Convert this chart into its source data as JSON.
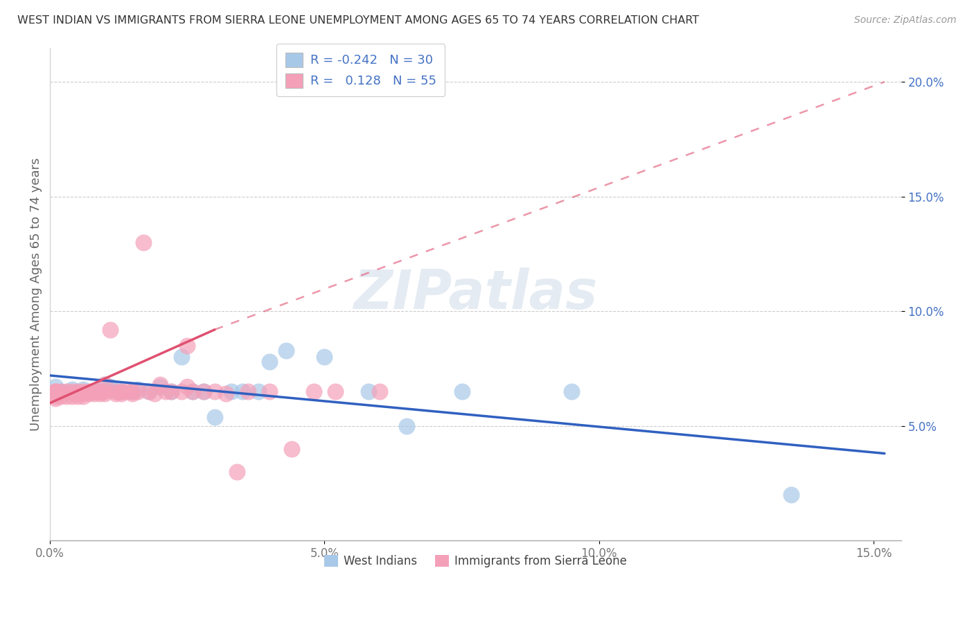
{
  "title": "WEST INDIAN VS IMMIGRANTS FROM SIERRA LEONE UNEMPLOYMENT AMONG AGES 65 TO 74 YEARS CORRELATION CHART",
  "source": "Source: ZipAtlas.com",
  "ylabel": "Unemployment Among Ages 65 to 74 years",
  "xlim": [
    0.0,
    0.155
  ],
  "ylim": [
    0.0,
    0.215
  ],
  "xtick_labels": [
    "0.0%",
    "5.0%",
    "10.0%",
    "15.0%"
  ],
  "ytick_labels": [
    "5.0%",
    "10.0%",
    "15.0%",
    "20.0%"
  ],
  "legend1_label": "West Indians",
  "legend2_label": "Immigrants from Sierra Leone",
  "blue_R": "-0.242",
  "blue_N": "30",
  "pink_R": "0.128",
  "pink_N": "55",
  "blue_color": "#a8c8e8",
  "pink_color": "#f4a0b8",
  "blue_line_color": "#3060c0",
  "pink_line_color": "#e05070",
  "background_color": "#ffffff",
  "grid_color": "#cccccc",
  "blue_scatter_x": [
    0.001,
    0.002,
    0.004,
    0.006,
    0.008,
    0.009,
    0.01,
    0.011,
    0.012,
    0.013,
    0.015,
    0.016,
    0.018,
    0.02,
    0.022,
    0.024,
    0.026,
    0.028,
    0.03,
    0.033,
    0.035,
    0.038,
    0.04,
    0.043,
    0.05,
    0.058,
    0.065,
    0.075,
    0.095,
    0.135
  ],
  "blue_scatter_y": [
    0.067,
    0.065,
    0.066,
    0.066,
    0.065,
    0.065,
    0.068,
    0.067,
    0.066,
    0.065,
    0.065,
    0.066,
    0.065,
    0.067,
    0.065,
    0.08,
    0.065,
    0.065,
    0.054,
    0.065,
    0.065,
    0.065,
    0.078,
    0.083,
    0.08,
    0.065,
    0.05,
    0.065,
    0.065,
    0.02
  ],
  "pink_scatter_x": [
    0.001,
    0.001,
    0.001,
    0.001,
    0.001,
    0.002,
    0.002,
    0.003,
    0.003,
    0.004,
    0.004,
    0.005,
    0.005,
    0.005,
    0.006,
    0.006,
    0.006,
    0.007,
    0.007,
    0.008,
    0.008,
    0.009,
    0.009,
    0.01,
    0.01,
    0.01,
    0.011,
    0.012,
    0.012,
    0.013,
    0.013,
    0.014,
    0.015,
    0.015,
    0.016,
    0.017,
    0.018,
    0.019,
    0.02,
    0.021,
    0.022,
    0.024,
    0.025,
    0.025,
    0.026,
    0.028,
    0.03,
    0.032,
    0.034,
    0.036,
    0.04,
    0.044,
    0.048,
    0.052,
    0.06
  ],
  "pink_scatter_y": [
    0.065,
    0.065,
    0.065,
    0.063,
    0.062,
    0.065,
    0.063,
    0.065,
    0.063,
    0.065,
    0.063,
    0.065,
    0.064,
    0.063,
    0.065,
    0.064,
    0.063,
    0.065,
    0.064,
    0.065,
    0.064,
    0.065,
    0.064,
    0.068,
    0.065,
    0.064,
    0.092,
    0.065,
    0.064,
    0.065,
    0.064,
    0.065,
    0.065,
    0.064,
    0.065,
    0.13,
    0.065,
    0.064,
    0.068,
    0.065,
    0.065,
    0.065,
    0.085,
    0.067,
    0.065,
    0.065,
    0.065,
    0.064,
    0.03,
    0.065,
    0.065,
    0.04,
    0.065,
    0.065,
    0.065
  ],
  "blue_trend_x0": 0.0,
  "blue_trend_y0": 0.072,
  "blue_trend_x1": 0.152,
  "blue_trend_y1": 0.038,
  "pink_trend_solid_x0": 0.0,
  "pink_trend_solid_y0": 0.06,
  "pink_trend_solid_x1": 0.03,
  "pink_trend_solid_y1": 0.092,
  "pink_trend_dash_x0": 0.03,
  "pink_trend_dash_y0": 0.092,
  "pink_trend_dash_x1": 0.152,
  "pink_trend_dash_y1": 0.2
}
